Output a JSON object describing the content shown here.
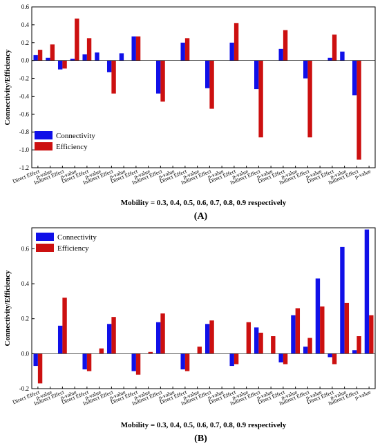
{
  "chart_data": [
    {
      "type": "bar",
      "panel_label": "(A)",
      "xlabel": "Mobility = 0.3, 0.4, 0.5, 0.6, 0.7, 0.8, 0.9 respectively",
      "ylabel": "Connectivity/Efficiency",
      "ylim": [
        -1.2,
        0.6
      ],
      "yticks": [
        -1.2,
        -1.0,
        -0.8,
        -0.6,
        -0.4,
        -0.2,
        0.0,
        0.2,
        0.4,
        0.6
      ],
      "ytick_labels": [
        "-1.2",
        "-1.0",
        "-0.8",
        "-0.6",
        "-0.4",
        "-0.2",
        "0.0",
        "0.2",
        "0.4",
        "0.6"
      ],
      "legend": {
        "position": "lower-left",
        "entries": [
          "Connectivity",
          "Efficiency"
        ]
      },
      "categories": [
        "Direct Effect",
        "p-value",
        "Indirect Effect",
        "p-value",
        "Direct Effect",
        "p-value",
        "Indirect Effect",
        "p-value",
        "Direct Effect",
        "p-value",
        "Indirect Effect",
        "p-value",
        "Direct Effect",
        "p-value",
        "Indirect Effect",
        "p-value",
        "Direct Effect",
        "p-value",
        "Indirect Effect",
        "p-value",
        "Direct Effect",
        "p-value",
        "Indirect Effect",
        "p-value",
        "Direct Effect",
        "p-value",
        "Indirect Effect",
        "p-value"
      ],
      "series": [
        {
          "name": "Connectivity",
          "color": "#1010e8",
          "values": [
            0.06,
            0.03,
            -0.1,
            0.02,
            0.07,
            0.09,
            -0.13,
            0.08,
            0.27,
            0.0,
            -0.37,
            0.0,
            0.2,
            0.0,
            -0.31,
            0.0,
            0.2,
            0.0,
            -0.32,
            0.0,
            0.13,
            0.0,
            -0.2,
            0.0,
            0.03,
            0.1,
            -0.39,
            0.0
          ]
        },
        {
          "name": "Efficiency",
          "color": "#cc1010",
          "values": [
            0.12,
            0.18,
            -0.09,
            0.47,
            0.25,
            0.0,
            -0.37,
            0.0,
            0.27,
            0.0,
            -0.46,
            0.0,
            0.25,
            0.0,
            -0.54,
            0.0,
            0.42,
            0.0,
            -0.86,
            0.0,
            0.34,
            0.0,
            -0.86,
            0.0,
            0.29,
            0.0,
            -1.11,
            0.0
          ]
        }
      ]
    },
    {
      "type": "bar",
      "panel_label": "(B)",
      "xlabel": "Mobility = 0.3, 0.4, 0.5, 0.6, 0.7, 0.8, 0.9 respectively",
      "ylabel": "Connectivity/Efficiency",
      "ylim": [
        -0.2,
        0.72
      ],
      "yticks": [
        -0.2,
        0.0,
        0.2,
        0.4,
        0.6
      ],
      "ytick_labels": [
        "-0.2",
        "0.0",
        "0.2",
        "0.4",
        "0.6"
      ],
      "legend": {
        "position": "top-left",
        "entries": [
          "Connectivity",
          "Efficiency"
        ]
      },
      "categories": [
        "Direct Effect",
        "p-value",
        "Indirect Effect",
        "p-value",
        "Direct Effect",
        "p-value",
        "Indirect Effect",
        "p-value",
        "Direct Effect",
        "p-value",
        "Indirect Effect",
        "p-value",
        "Direct Effect",
        "p-value",
        "Indirect Effect",
        "p-value",
        "Direct Effect",
        "p-value",
        "Indirect Effect",
        "p-value",
        "Direct Effect",
        "p-value",
        "Indirect Effect",
        "p-value",
        "Direct Effect",
        "p-value",
        "Indirect Effect",
        "p-value"
      ],
      "series": [
        {
          "name": "Connectivity",
          "color": "#1010e8",
          "values": [
            -0.07,
            0.0,
            0.16,
            0.0,
            -0.09,
            0.0,
            0.17,
            0.0,
            -0.1,
            0.0,
            0.18,
            0.0,
            -0.09,
            0.0,
            0.17,
            0.0,
            -0.07,
            0.0,
            0.15,
            0.0,
            -0.05,
            0.22,
            0.04,
            0.43,
            -0.02,
            0.61,
            0.02,
            0.71
          ]
        },
        {
          "name": "Efficiency",
          "color": "#cc1010",
          "values": [
            -0.17,
            0.0,
            0.32,
            0.0,
            -0.1,
            0.03,
            0.21,
            0.0,
            -0.12,
            0.01,
            0.23,
            0.0,
            -0.1,
            0.04,
            0.19,
            0.0,
            -0.06,
            0.18,
            0.12,
            0.1,
            -0.06,
            0.26,
            0.09,
            0.27,
            -0.06,
            0.29,
            0.1,
            0.22
          ]
        }
      ]
    }
  ]
}
